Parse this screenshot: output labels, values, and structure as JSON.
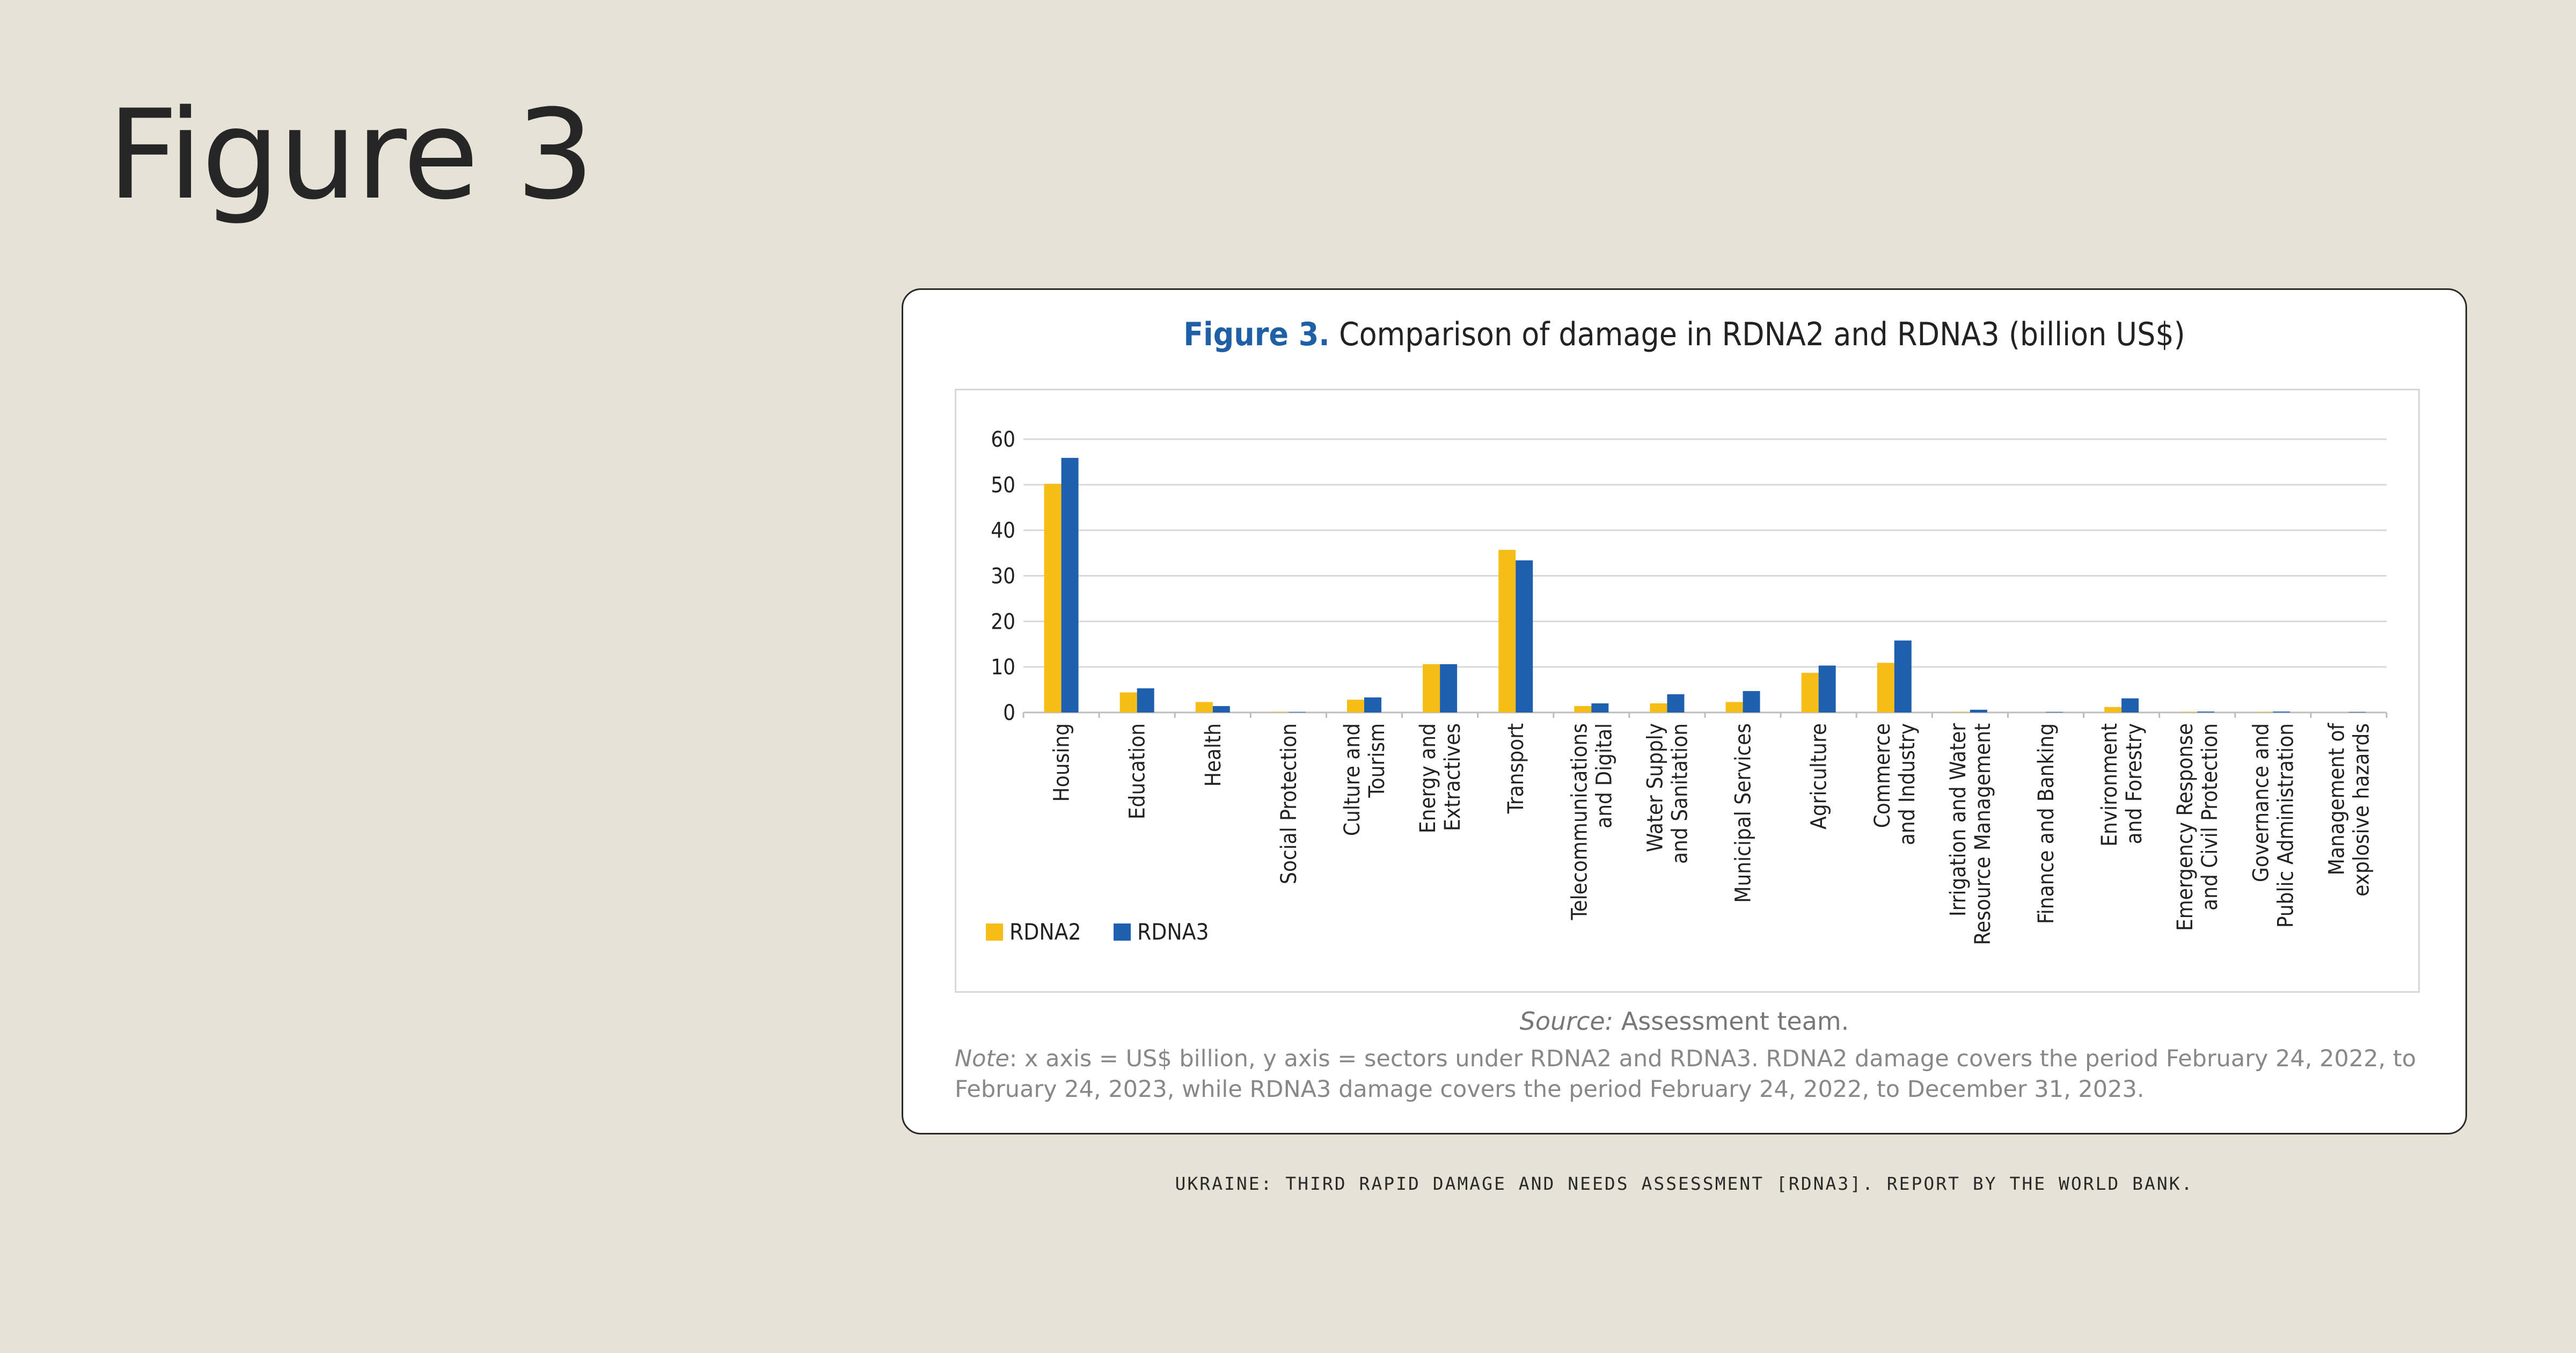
{
  "page": {
    "title": "Figure 3"
  },
  "card": {
    "fig_label": "Figure 3.",
    "heading": "Comparison of damage in RDNA2 and RDNA3 (billion US$)",
    "source_label": "Source:",
    "source_text": "Assessment team.",
    "note_label": "Note",
    "note_text": ": x axis = US$ billion, y axis = sectors under RDNA2 and RDNA3. RDNA2 damage covers the period February 24, 2022, to February 24, 2023, while RDNA3 damage covers the period February 24, 2022, to December 31, 2023."
  },
  "footer": "UKRAINE: THIRD RAPID DAMAGE AND NEEDS ASSESSMENT [RDNA3]. REPORT BY THE WORLD BANK.",
  "colors": {
    "rdna2": "#f6bd16",
    "rdna3": "#1f5fb0",
    "accent": "#1f5fa6"
  },
  "chart_data": {
    "type": "bar",
    "title": "Comparison of damage in RDNA2 and RDNA3 (billion US$)",
    "categories": [
      [
        "Housing"
      ],
      [
        "Education"
      ],
      [
        "Health"
      ],
      [
        "Social Protection"
      ],
      [
        "Culture and",
        "Tourism"
      ],
      [
        "Energy and",
        "Extractives"
      ],
      [
        "Transport"
      ],
      [
        "Telecommunications",
        "and Digital"
      ],
      [
        "Water Supply",
        "and Sanitation"
      ],
      [
        "Municipal Services"
      ],
      [
        "Agriculture"
      ],
      [
        "Commerce",
        "and Industry"
      ],
      [
        "Irrigation and Water",
        "Resource Management"
      ],
      [
        "Finance and Banking"
      ],
      [
        "Environment",
        "and Forestry"
      ],
      [
        "Emergency Response",
        "and Civil Protection"
      ],
      [
        "Governance and",
        "Public Administration"
      ],
      [
        "Management of",
        "explosive hazards"
      ]
    ],
    "series": [
      {
        "name": "RDNA2",
        "values": [
          50.2,
          4.4,
          2.3,
          0.1,
          2.8,
          10.6,
          35.7,
          1.4,
          2.0,
          2.3,
          8.7,
          10.9,
          0.1,
          0.0,
          1.2,
          0.1,
          0.1,
          0.0
        ]
      },
      {
        "name": "RDNA3",
        "values": [
          55.9,
          5.3,
          1.4,
          0.1,
          3.3,
          10.6,
          33.4,
          2.0,
          4.0,
          4.7,
          10.3,
          15.8,
          0.6,
          0.1,
          3.1,
          0.2,
          0.2,
          0.1
        ]
      }
    ],
    "y_ticks": [
      "0",
      "10",
      "20",
      "30",
      "40",
      "50",
      "60"
    ],
    "ylim": [
      0,
      60
    ],
    "grid": true,
    "legend": "bottom-left"
  }
}
